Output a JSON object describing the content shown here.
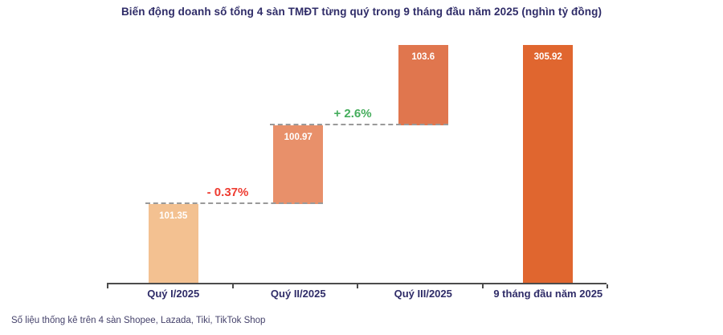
{
  "chart_data": {
    "type": "bar",
    "subtype": "waterfall",
    "title": "Biến động doanh số tổng 4 sàn TMĐT từng quý trong 9 tháng đầu năm 2025 (nghìn tỷ đồng)",
    "unit": "nghìn tỷ đồng",
    "xlabel": "",
    "ylabel": "",
    "ylim": [
      0,
      306
    ],
    "grid": false,
    "legend": false,
    "categories": [
      "Quý I/2025",
      "Quý II/2025",
      "Quý III/2025",
      "9 tháng đầu năm 2025"
    ],
    "categories_axis_color": "#2f2c68",
    "axis_color": "#4c4c4c",
    "dashed_line_color": "#9a9a9a",
    "value_label_color": "#ffffff",
    "bars": [
      {
        "label": "Quý I/2025",
        "value": 101.35,
        "display_value": "101.35",
        "start": 0,
        "end": 101.35,
        "color": "#f3c191"
      },
      {
        "label": "Quý II/2025",
        "value": 100.97,
        "display_value": "100.97",
        "start": 101.35,
        "end": 202.32,
        "color": "#e8906a"
      },
      {
        "label": "Quý III/2025",
        "value": 103.6,
        "display_value": "103.6",
        "start": 202.32,
        "end": 305.92,
        "color": "#e0764e"
      },
      {
        "label": "9 tháng đầu năm 2025",
        "value": 305.92,
        "display_value": "305.92",
        "start": 0,
        "end": 305.92,
        "color": "#e0662f"
      }
    ],
    "connectors": [
      {
        "from": 0,
        "to": 1,
        "at_value": 101.35,
        "label": "- 0.37%",
        "label_color": "#ee3b30"
      },
      {
        "from": 1,
        "to": 2,
        "at_value": 202.32,
        "label": "+ 2.6%",
        "label_color": "#45ad5c"
      }
    ]
  },
  "footer": {
    "source_note": "Số liệu thống kê trên 4 sàn Shopee, Lazada, Tiki, TikTok Shop"
  },
  "colors": {
    "title": "#2f2c68",
    "footer": "#45426b",
    "background": "#ffffff"
  }
}
